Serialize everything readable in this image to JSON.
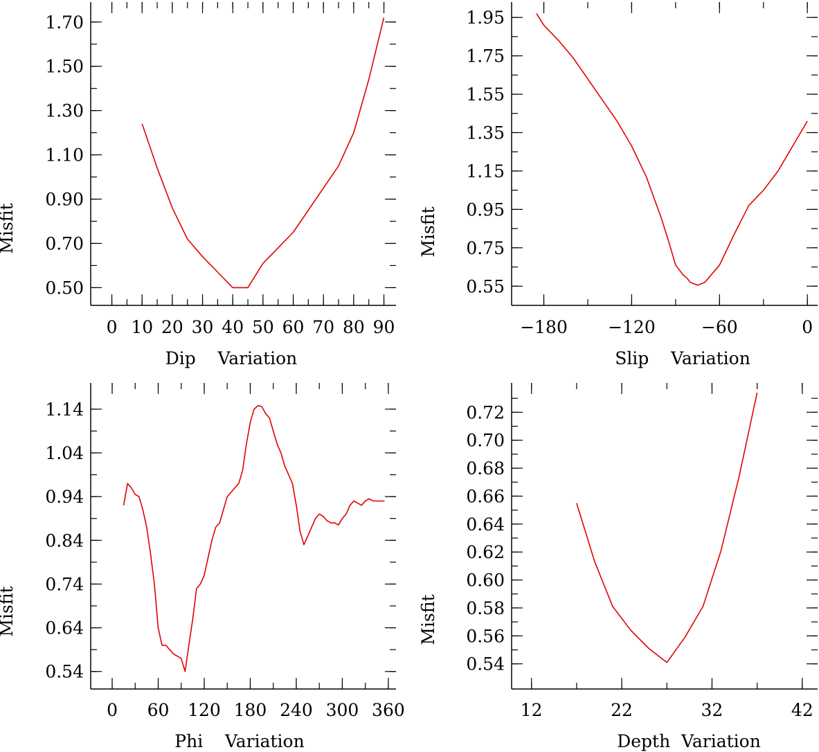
{
  "chart_data": [
    {
      "type": "line",
      "id": "dip",
      "title": "",
      "xlabel": "Dip    Variation",
      "ylabel": "Misfit",
      "xlim": [
        -7,
        94
      ],
      "ylim": [
        0.42,
        1.79
      ],
      "xticks": [
        0,
        10,
        20,
        30,
        40,
        50,
        60,
        70,
        80,
        90
      ],
      "xtick_labels": [
        "0",
        "10",
        "20",
        "30",
        "40",
        "50",
        "60",
        "70",
        "80",
        "90"
      ],
      "xminor": [
        0,
        5,
        10,
        15,
        20,
        25,
        30,
        35,
        40,
        45,
        50,
        55,
        60,
        65,
        70,
        75,
        80,
        85,
        90
      ],
      "yticks": [
        0.5,
        0.7,
        0.9,
        1.1,
        1.3,
        1.5,
        1.7
      ],
      "ytick_labels": [
        "0.50",
        "0.70",
        "0.90",
        "1.10",
        "1.30",
        "1.50",
        "1.70"
      ],
      "yminor": [
        0.5,
        0.6,
        0.7,
        0.8,
        0.9,
        1.0,
        1.1,
        1.2,
        1.3,
        1.4,
        1.5,
        1.6,
        1.7
      ],
      "series": [
        {
          "name": "Misfit",
          "color": "#e00000",
          "x": [
            10,
            15,
            20,
            25,
            30,
            35,
            40,
            45,
            50,
            55,
            60,
            65,
            70,
            75,
            80,
            85,
            90
          ],
          "y": [
            1.24,
            1.04,
            0.86,
            0.72,
            0.64,
            0.57,
            0.5,
            0.5,
            0.61,
            0.68,
            0.75,
            0.85,
            0.95,
            1.05,
            1.2,
            1.44,
            1.72
          ]
        }
      ]
    },
    {
      "type": "line",
      "id": "slip",
      "title": "",
      "xlabel": "Slip    Variation",
      "ylabel": "Misfit",
      "xlim": [
        -202,
        7
      ],
      "ylim": [
        0.45,
        2.03
      ],
      "xticks": [
        -180,
        -120,
        -60,
        0
      ],
      "xtick_labels": [
        "−180",
        "−120",
        "−60",
        "0"
      ],
      "xminor": [
        -180,
        -150,
        -120,
        -90,
        -60,
        -30,
        0
      ],
      "yticks": [
        0.55,
        0.75,
        0.95,
        1.15,
        1.35,
        1.55,
        1.75,
        1.95
      ],
      "ytick_labels": [
        "0.55",
        "0.75",
        "0.95",
        "1.15",
        "1.35",
        "1.55",
        "1.75",
        "1.95"
      ],
      "yminor": [
        0.55,
        0.65,
        0.75,
        0.85,
        0.95,
        1.05,
        1.15,
        1.25,
        1.35,
        1.45,
        1.55,
        1.65,
        1.75,
        1.85,
        1.95
      ],
      "series": [
        {
          "name": "Misfit",
          "color": "#e00000",
          "x": [
            -185,
            -180,
            -170,
            -160,
            -150,
            -140,
            -130,
            -120,
            -110,
            -100,
            -95,
            -90,
            -85,
            -82,
            -80,
            -75,
            -70,
            -60,
            -50,
            -40,
            -30,
            -20,
            -10,
            0
          ],
          "y": [
            1.97,
            1.91,
            1.83,
            1.74,
            1.63,
            1.52,
            1.41,
            1.28,
            1.12,
            0.91,
            0.79,
            0.66,
            0.61,
            0.59,
            0.57,
            0.555,
            0.57,
            0.66,
            0.82,
            0.97,
            1.05,
            1.15,
            1.28,
            1.41
          ]
        }
      ]
    },
    {
      "type": "line",
      "id": "phi",
      "title": "",
      "xlabel": "Phi    Variation",
      "ylabel": "Misfit",
      "xlim": [
        -28,
        370
      ],
      "ylim": [
        0.5,
        1.2
      ],
      "xticks": [
        0,
        60,
        120,
        180,
        240,
        300,
        360
      ],
      "xtick_labels": [
        "0",
        "60",
        "120",
        "180",
        "240",
        "300",
        "360"
      ],
      "xminor": [
        0,
        30,
        60,
        90,
        120,
        150,
        180,
        210,
        240,
        270,
        300,
        330,
        360
      ],
      "yticks": [
        0.54,
        0.64,
        0.74,
        0.84,
        0.94,
        1.04,
        1.14
      ],
      "ytick_labels": [
        "0.54",
        "0.64",
        "0.74",
        "0.84",
        "0.94",
        "1.04",
        "1.14"
      ],
      "yminor": [
        0.54,
        0.59,
        0.64,
        0.69,
        0.74,
        0.79,
        0.84,
        0.89,
        0.94,
        0.99,
        1.04,
        1.09,
        1.14
      ],
      "series": [
        {
          "name": "Misfit",
          "color": "#e00000",
          "x": [
            15,
            20,
            25,
            30,
            35,
            40,
            45,
            50,
            55,
            60,
            65,
            70,
            75,
            80,
            85,
            90,
            95,
            100,
            105,
            110,
            115,
            120,
            125,
            130,
            135,
            140,
            145,
            150,
            155,
            160,
            165,
            170,
            175,
            180,
            185,
            190,
            195,
            200,
            205,
            210,
            215,
            220,
            225,
            230,
            235,
            240,
            245,
            250,
            255,
            260,
            265,
            270,
            275,
            280,
            285,
            290,
            295,
            300,
            305,
            310,
            315,
            320,
            325,
            330,
            335,
            340,
            345,
            350,
            355
          ],
          "y": [
            0.92,
            0.97,
            0.96,
            0.945,
            0.94,
            0.91,
            0.87,
            0.81,
            0.74,
            0.64,
            0.6,
            0.6,
            0.59,
            0.58,
            0.575,
            0.57,
            0.54,
            0.6,
            0.66,
            0.73,
            0.74,
            0.76,
            0.8,
            0.84,
            0.87,
            0.88,
            0.91,
            0.94,
            0.95,
            0.96,
            0.97,
            1.0,
            1.06,
            1.11,
            1.14,
            1.148,
            1.146,
            1.13,
            1.12,
            1.09,
            1.06,
            1.04,
            1.01,
            0.99,
            0.97,
            0.92,
            0.86,
            0.83,
            0.85,
            0.87,
            0.89,
            0.9,
            0.895,
            0.885,
            0.88,
            0.88,
            0.875,
            0.89,
            0.9,
            0.92,
            0.93,
            0.925,
            0.92,
            0.93,
            0.935,
            0.93,
            0.93,
            0.93,
            0.93
          ]
        }
      ]
    },
    {
      "type": "line",
      "id": "depth",
      "title": "",
      "xlabel": "Depth  Variation",
      "ylabel": "Misfit",
      "xlim": [
        9.8,
        43.7
      ],
      "ylim": [
        0.522,
        0.741
      ],
      "xticks": [
        12,
        22,
        32,
        42
      ],
      "xtick_labels": [
        "12",
        "22",
        "32",
        "42"
      ],
      "xminor": [
        12,
        17,
        22,
        27,
        32,
        37,
        42
      ],
      "yticks": [
        0.54,
        0.56,
        0.58,
        0.6,
        0.62,
        0.64,
        0.66,
        0.68,
        0.7,
        0.72
      ],
      "ytick_labels": [
        "0.54",
        "0.56",
        "0.58",
        "0.60",
        "0.62",
        "0.64",
        "0.66",
        "0.68",
        "0.70",
        "0.72"
      ],
      "yminor": [
        0.54,
        0.55,
        0.56,
        0.57,
        0.58,
        0.59,
        0.6,
        0.61,
        0.62,
        0.63,
        0.64,
        0.65,
        0.66,
        0.67,
        0.68,
        0.69,
        0.7,
        0.71,
        0.72,
        0.73
      ],
      "series": [
        {
          "name": "Misfit",
          "color": "#e00000",
          "x": [
            17,
            19,
            21,
            23,
            25,
            27,
            29,
            31,
            33,
            35,
            37
          ],
          "y": [
            0.655,
            0.613,
            0.581,
            0.564,
            0.551,
            0.541,
            0.559,
            0.581,
            0.621,
            0.674,
            0.734
          ]
        }
      ]
    }
  ]
}
